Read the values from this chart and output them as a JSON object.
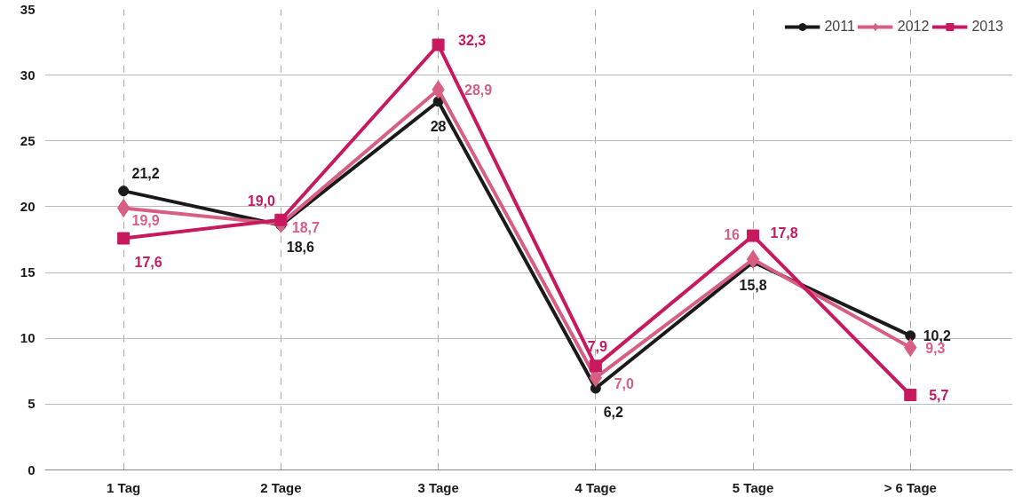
{
  "chart_data": {
    "type": "line",
    "categories": [
      "1 Tag",
      "2 Tage",
      "3 Tage",
      "4 Tage",
      "5 Tage",
      "> 6 Tage"
    ],
    "series": [
      {
        "name": "2011",
        "color": "#1a1a1a",
        "marker": "circle",
        "values": [
          21.2,
          18.6,
          28,
          6.2,
          15.8,
          10.2
        ],
        "value_labels": [
          "21,2",
          "18,6",
          "28",
          "6,2",
          "15,8",
          "10,2"
        ]
      },
      {
        "name": "2012",
        "color": "#d75f84",
        "marker": "diamond",
        "values": [
          19.9,
          18.7,
          28.9,
          7.0,
          16,
          9.3
        ],
        "value_labels": [
          "19,9",
          "18,7",
          "28,9",
          "7,0",
          "16",
          "9,3"
        ]
      },
      {
        "name": "2013",
        "color": "#c8195f",
        "marker": "square",
        "values": [
          17.6,
          19.0,
          32.3,
          7.9,
          17.8,
          5.7
        ],
        "value_labels": [
          "17,6",
          "19,0",
          "32,3",
          "7,9",
          "17,8",
          "5,7"
        ]
      }
    ],
    "ylim": [
      0,
      35
    ],
    "yticks": [
      0,
      5,
      10,
      15,
      20,
      25,
      30,
      35
    ],
    "grid": true,
    "legend": "top right",
    "line_style": "solid"
  }
}
